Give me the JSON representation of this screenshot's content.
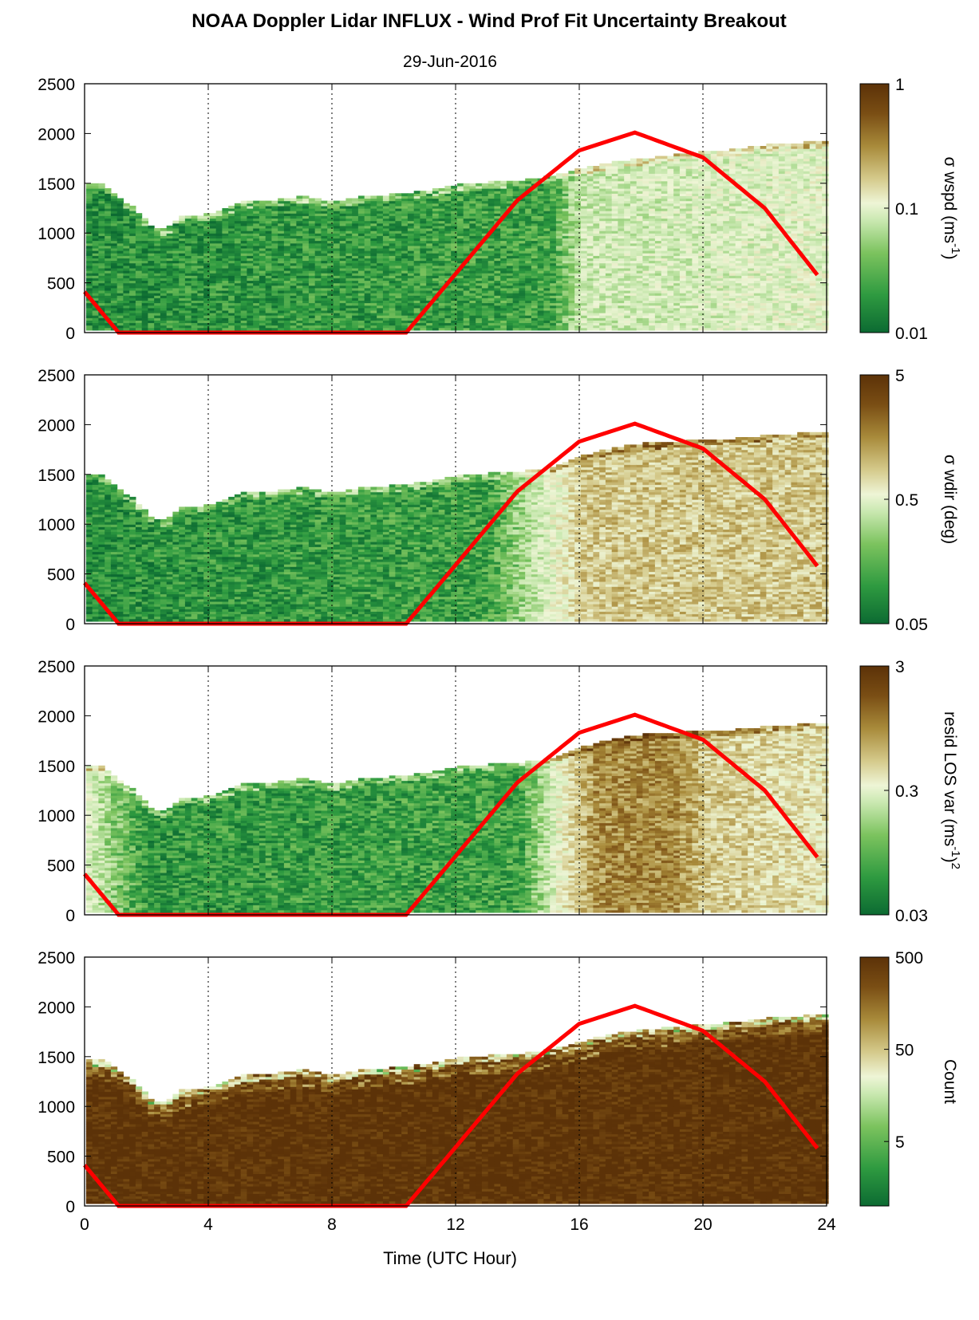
{
  "figure": {
    "title": "NOAA Doppler Lidar INFLUX - Wind Prof Fit Uncertainty Breakout",
    "subtitle": "29-Jun-2016",
    "xlabel": "Time (UTC Hour)"
  },
  "chart_data": [
    {
      "type": "heatmap",
      "xlim": [
        0,
        24
      ],
      "x_ticks": [
        "0",
        "4",
        "8",
        "12",
        "16",
        "20",
        "24"
      ],
      "x_gridlines": [
        4,
        8,
        12,
        16,
        20
      ],
      "ylim": [
        0,
        2500
      ],
      "y_ticks": [
        "0",
        "500",
        "1000",
        "1500",
        "2000",
        "2500"
      ],
      "colorbar": {
        "label": "σ wspd (ms",
        "label_sup": "-1",
        "label_tail": ")",
        "scale": "log",
        "range": [
          0.01,
          1
        ],
        "ticks": [
          "1",
          "0.1",
          "0.01"
        ]
      },
      "data_top_height": [
        [
          0,
          1490
        ],
        [
          0.5,
          1480
        ],
        [
          1,
          1350
        ],
        [
          1.5,
          1250
        ],
        [
          2,
          1080
        ],
        [
          2.5,
          1020
        ],
        [
          3,
          1150
        ],
        [
          4,
          1180
        ],
        [
          5,
          1300
        ],
        [
          6,
          1320
        ],
        [
          7,
          1360
        ],
        [
          8,
          1300
        ],
        [
          9,
          1360
        ],
        [
          10,
          1380
        ],
        [
          11,
          1420
        ],
        [
          12,
          1480
        ],
        [
          13,
          1500
        ],
        [
          14,
          1520
        ],
        [
          15,
          1560
        ],
        [
          16,
          1640
        ],
        [
          17,
          1700
        ],
        [
          18,
          1740
        ],
        [
          19,
          1780
        ],
        [
          20,
          1810
        ],
        [
          21,
          1830
        ],
        [
          22,
          1880
        ],
        [
          23.8,
          1910
        ]
      ],
      "intensity_by_hour": [
        [
          0,
          0.1
        ],
        [
          15,
          0.15
        ],
        [
          16,
          0.4
        ],
        [
          24,
          0.45
        ]
      ],
      "sun_curve": [
        [
          0,
          410
        ],
        [
          1.1,
          0
        ],
        [
          10.4,
          0
        ],
        [
          12,
          590
        ],
        [
          14,
          1330
        ],
        [
          16,
          1830
        ],
        [
          17.8,
          2010
        ],
        [
          20,
          1760
        ],
        [
          22,
          1250
        ],
        [
          23.8,
          540
        ]
      ]
    },
    {
      "type": "heatmap",
      "xlim": [
        0,
        24
      ],
      "x_ticks": [
        "0",
        "4",
        "8",
        "12",
        "16",
        "20",
        "24"
      ],
      "x_gridlines": [
        4,
        8,
        12,
        16,
        20
      ],
      "ylim": [
        0,
        2500
      ],
      "y_ticks": [
        "0",
        "500",
        "1000",
        "1500",
        "2000",
        "2500"
      ],
      "colorbar": {
        "label": "σ wdir (deg)",
        "label_sup": "",
        "label_tail": "",
        "scale": "log",
        "range": [
          0.05,
          5
        ],
        "ticks": [
          "5",
          "0.5",
          "0.05"
        ]
      },
      "data_top_height": [
        [
          0,
          1490
        ],
        [
          0.5,
          1480
        ],
        [
          1,
          1350
        ],
        [
          1.5,
          1250
        ],
        [
          2,
          1080
        ],
        [
          2.5,
          1020
        ],
        [
          3,
          1150
        ],
        [
          4,
          1180
        ],
        [
          5,
          1300
        ],
        [
          6,
          1320
        ],
        [
          7,
          1360
        ],
        [
          8,
          1300
        ],
        [
          9,
          1360
        ],
        [
          10,
          1380
        ],
        [
          11,
          1420
        ],
        [
          12,
          1480
        ],
        [
          13,
          1500
        ],
        [
          14,
          1520
        ],
        [
          15,
          1560
        ],
        [
          16,
          1680
        ],
        [
          17,
          1760
        ],
        [
          18,
          1800
        ],
        [
          19,
          1820
        ],
        [
          20,
          1840
        ],
        [
          21,
          1850
        ],
        [
          22,
          1880
        ],
        [
          23.8,
          1920
        ]
      ],
      "intensity_by_hour": [
        [
          0,
          0.1
        ],
        [
          13,
          0.15
        ],
        [
          15,
          0.45
        ],
        [
          16,
          0.62
        ],
        [
          24,
          0.62
        ]
      ],
      "sun_curve": [
        [
          0,
          410
        ],
        [
          1.1,
          0
        ],
        [
          10.4,
          0
        ],
        [
          12,
          590
        ],
        [
          14,
          1330
        ],
        [
          16,
          1830
        ],
        [
          17.8,
          2010
        ],
        [
          20,
          1760
        ],
        [
          22,
          1250
        ],
        [
          23.8,
          540
        ]
      ]
    },
    {
      "type": "heatmap",
      "xlim": [
        0,
        24
      ],
      "x_ticks": [
        "0",
        "4",
        "8",
        "12",
        "16",
        "20",
        "24"
      ],
      "x_gridlines": [
        4,
        8,
        12,
        16,
        20
      ],
      "ylim": [
        0,
        2500
      ],
      "y_ticks": [
        "0",
        "500",
        "1000",
        "1500",
        "2000",
        "2500"
      ],
      "colorbar": {
        "label": "resid LOS var (ms",
        "label_sup": "-1",
        "label_tail": ")",
        "label_sup2": "2",
        "scale": "log",
        "range": [
          0.03,
          3
        ],
        "ticks": [
          "3",
          "0.3",
          "0.03"
        ]
      },
      "data_top_height": [
        [
          0,
          1490
        ],
        [
          0.5,
          1480
        ],
        [
          1,
          1350
        ],
        [
          1.5,
          1250
        ],
        [
          2,
          1080
        ],
        [
          2.5,
          1020
        ],
        [
          3,
          1150
        ],
        [
          4,
          1180
        ],
        [
          5,
          1300
        ],
        [
          6,
          1320
        ],
        [
          7,
          1360
        ],
        [
          8,
          1300
        ],
        [
          9,
          1360
        ],
        [
          10,
          1380
        ],
        [
          11,
          1420
        ],
        [
          12,
          1480
        ],
        [
          13,
          1500
        ],
        [
          14,
          1520
        ],
        [
          15,
          1560
        ],
        [
          16,
          1680
        ],
        [
          17,
          1760
        ],
        [
          18,
          1800
        ],
        [
          19,
          1820
        ],
        [
          20,
          1840
        ],
        [
          21,
          1850
        ],
        [
          22,
          1880
        ],
        [
          23.8,
          1920
        ]
      ],
      "intensity_by_hour": [
        [
          0,
          0.45
        ],
        [
          1,
          0.25
        ],
        [
          2,
          0.12
        ],
        [
          14,
          0.15
        ],
        [
          15.5,
          0.55
        ],
        [
          16.5,
          0.75
        ],
        [
          19,
          0.75
        ],
        [
          20,
          0.62
        ],
        [
          24,
          0.55
        ]
      ],
      "sun_curve": [
        [
          0,
          410
        ],
        [
          1.1,
          0
        ],
        [
          10.4,
          0
        ],
        [
          12,
          590
        ],
        [
          14,
          1330
        ],
        [
          16,
          1830
        ],
        [
          17.8,
          2010
        ],
        [
          20,
          1760
        ],
        [
          22,
          1250
        ],
        [
          23.8,
          540
        ]
      ]
    },
    {
      "type": "heatmap",
      "xlim": [
        0,
        24
      ],
      "x_ticks": [
        "0",
        "4",
        "8",
        "12",
        "16",
        "20",
        "24"
      ],
      "x_gridlines": [
        4,
        8,
        12,
        16,
        20
      ],
      "ylim": [
        0,
        2500
      ],
      "y_ticks": [
        "0",
        "500",
        "1000",
        "1500",
        "2000",
        "2500"
      ],
      "colorbar": {
        "label": "Count",
        "label_sup": "",
        "label_tail": "",
        "scale": "log",
        "range": [
          1,
          500
        ],
        "ticks": [
          "500",
          "50",
          "5"
        ]
      },
      "data_top_height": [
        [
          0,
          1450
        ],
        [
          0.5,
          1460
        ],
        [
          1,
          1350
        ],
        [
          1.5,
          1250
        ],
        [
          2,
          1080
        ],
        [
          2.5,
          1020
        ],
        [
          3,
          1150
        ],
        [
          4,
          1180
        ],
        [
          5,
          1300
        ],
        [
          6,
          1320
        ],
        [
          7,
          1360
        ],
        [
          8,
          1300
        ],
        [
          9,
          1360
        ],
        [
          10,
          1380
        ],
        [
          11,
          1420
        ],
        [
          12,
          1480
        ],
        [
          13,
          1500
        ],
        [
          14,
          1520
        ],
        [
          15,
          1560
        ],
        [
          16,
          1640
        ],
        [
          17,
          1720
        ],
        [
          18,
          1760
        ],
        [
          19,
          1790
        ],
        [
          20,
          1810
        ],
        [
          21,
          1840
        ],
        [
          22,
          1880
        ],
        [
          23.8,
          1910
        ]
      ],
      "intensity_by_hour": [
        [
          0,
          1.0
        ],
        [
          24,
          1.0
        ]
      ],
      "sun_curve": [
        [
          0,
          410
        ],
        [
          1.1,
          0
        ],
        [
          10.4,
          0
        ],
        [
          12,
          590
        ],
        [
          14,
          1330
        ],
        [
          16,
          1830
        ],
        [
          17.8,
          2010
        ],
        [
          20,
          1760
        ],
        [
          22,
          1250
        ],
        [
          23.8,
          540
        ]
      ]
    }
  ],
  "colors": {
    "colormap": [
      "#0c6a32",
      "#2e9a40",
      "#7cc35e",
      "#c9e8b0",
      "#eef5d6",
      "#d4c98a",
      "#a88a3a",
      "#7a4e14",
      "#5c3208"
    ],
    "sun_curve": "#ff0000",
    "axis": "#000000"
  }
}
